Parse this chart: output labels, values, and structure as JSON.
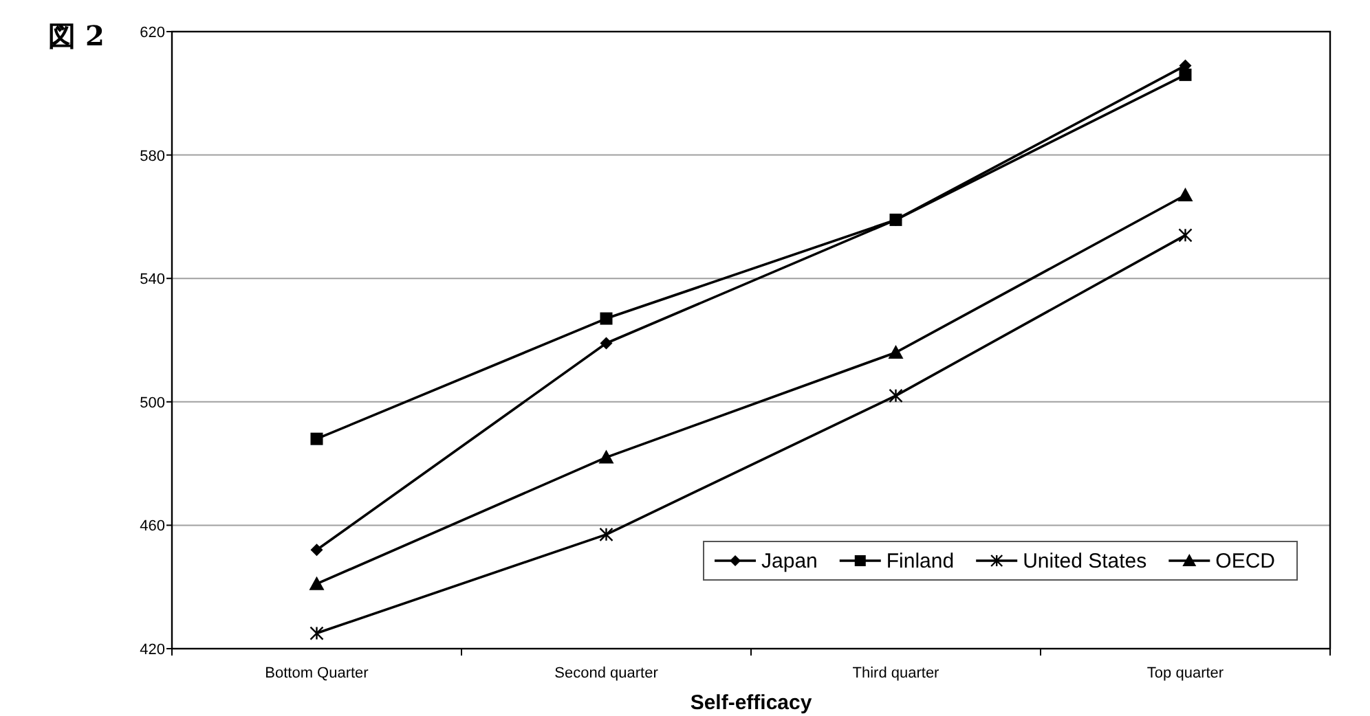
{
  "chart_data": {
    "type": "line",
    "title": "図 2",
    "xlabel": "Self-efficacy",
    "categories": [
      "Bottom Quarter",
      "Second quarter",
      "Third quarter",
      "Top quarter"
    ],
    "series": [
      {
        "name": "Japan",
        "color": "#000000",
        "marker": "diamond",
        "values": [
          452,
          519,
          559,
          609
        ]
      },
      {
        "name": "Finland",
        "color": "#000000",
        "marker": "square",
        "values": [
          488,
          527,
          559,
          606
        ]
      },
      {
        "name": "United States",
        "color": "#000000",
        "marker": "cross",
        "values": [
          425,
          457,
          502,
          554
        ]
      },
      {
        "name": "OECD",
        "color": "#000000",
        "marker": "triangle",
        "values": [
          441,
          482,
          516,
          567
        ]
      }
    ],
    "ylim": [
      420,
      620
    ],
    "yticks": [
      420,
      460,
      500,
      540,
      580,
      620
    ],
    "grid": "y",
    "legend": "bottom right",
    "line_style": "solid"
  }
}
